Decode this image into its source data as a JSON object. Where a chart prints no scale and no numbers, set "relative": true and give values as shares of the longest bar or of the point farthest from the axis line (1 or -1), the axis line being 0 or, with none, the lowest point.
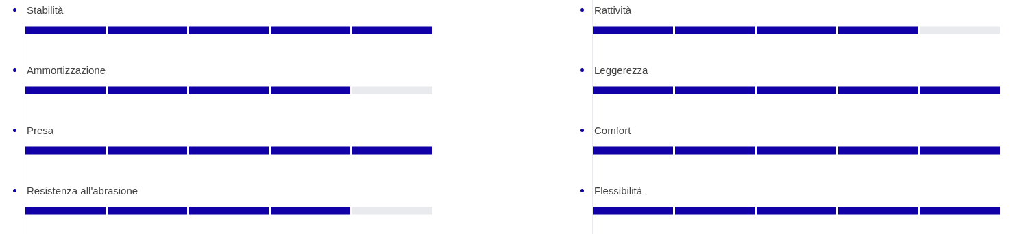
{
  "chart_data": [
    {
      "type": "bar",
      "orientation": "horizontal",
      "relative": true,
      "color": "#1100a8",
      "categories": [
        "Stabilità",
        "Ammortizzazione",
        "Presa",
        "Resistenza all'abrasione"
      ],
      "values": [
        1,
        0.8,
        1,
        0.8
      ]
    },
    {
      "type": "bar",
      "orientation": "horizontal",
      "relative": true,
      "color": "#1100a8",
      "categories": [
        "Rattività",
        "Leggerezza",
        "Comfort",
        "Flessibilità"
      ],
      "values": [
        0.8,
        1,
        1,
        1
      ]
    }
  ]
}
